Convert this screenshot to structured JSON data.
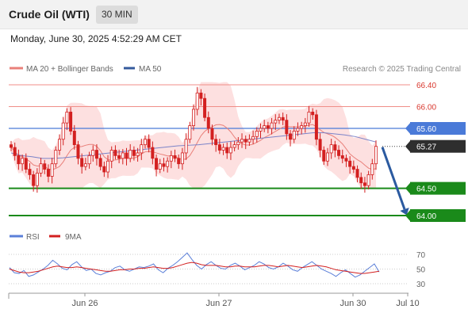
{
  "header": {
    "instrument": "Crude Oil (WTI)",
    "timeframe": "30 MIN"
  },
  "datetime": "Monday, June 30, 2025 4:52:29 AM CET",
  "legend": {
    "ma20_label": "MA 20 + Bollinger Bands",
    "ma50_label": "MA 50",
    "copyright": "Research © 2025 Trading Central"
  },
  "rsi_legend": {
    "rsi_label": "RSI",
    "ma_label": "9MA"
  },
  "colors": {
    "ma20": "#e9807a",
    "ma50": "#355a9c",
    "band": "#fde0e0",
    "resistance": "#f08e88",
    "pivot": "#4a7ad8",
    "support": "#1a8a1a",
    "last_price": "#2e2e2e",
    "candle": "#d32020",
    "arrow": "#2b5aa0",
    "rsi": "#5b7fd8",
    "rsi_ma": "#d32020"
  },
  "chart_data": [
    {
      "type": "candlestick",
      "x_axis": {
        "labels": [
          "Jun 26",
          "Jun 27",
          "Jun 30",
          "Jul 10"
        ]
      },
      "y_range": [
        63.8,
        66.5
      ],
      "levels": [
        {
          "label": "66.40",
          "value": 66.4,
          "kind": "resistance"
        },
        {
          "label": "66.00",
          "value": 66.0,
          "kind": "resistance"
        },
        {
          "label": "65.60",
          "value": 65.6,
          "kind": "pivot"
        },
        {
          "label": "64.50",
          "value": 64.5,
          "kind": "support"
        },
        {
          "label": "64.00",
          "value": 64.0,
          "kind": "support"
        }
      ],
      "last_price": {
        "label": "65.27",
        "value": 65.27
      },
      "close": [
        65.25,
        65.1,
        64.95,
        65.05,
        64.85,
        64.75,
        64.55,
        64.78,
        64.95,
        64.85,
        64.72,
        64.95,
        65.2,
        65.4,
        65.7,
        65.9,
        65.55,
        65.3,
        65.05,
        64.9,
        64.95,
        65.1,
        65.2,
        65.05,
        64.9,
        64.8,
        65.0,
        65.2,
        65.1,
        65.05,
        65.15,
        65.05,
        65.2,
        65.1,
        65.15,
        65.3,
        65.4,
        65.25,
        65.05,
        64.85,
        64.95,
        64.9,
        65.0,
        65.1,
        65.05,
        64.95,
        65.15,
        65.4,
        65.65,
        65.95,
        66.25,
        66.15,
        65.8,
        65.6,
        65.4,
        65.3,
        65.2,
        65.25,
        65.15,
        65.25,
        65.3,
        65.35,
        65.4,
        65.35,
        65.4,
        65.45,
        65.55,
        65.6,
        65.65,
        65.6,
        65.7,
        65.75,
        65.8,
        65.75,
        65.5,
        65.4,
        65.55,
        65.6,
        65.65,
        65.7,
        65.9,
        65.85,
        65.4,
        65.2,
        65.0,
        65.15,
        65.3,
        65.2,
        65.1,
        65.05,
        65.0,
        64.9,
        64.85,
        64.7,
        64.6,
        64.55,
        64.75,
        64.95,
        65.27
      ],
      "ma50": [
        65.15,
        65.1,
        65.08,
        65.05,
        65.05,
        65.06,
        65.08,
        65.1,
        65.12,
        65.14,
        65.16,
        65.18,
        65.2,
        65.22,
        65.24,
        65.26,
        65.28,
        65.29,
        65.3,
        65.32,
        65.34,
        65.36,
        65.38,
        65.4,
        65.42,
        65.44,
        65.46,
        65.48,
        65.5,
        65.52,
        65.52,
        65.5,
        65.48,
        65.45,
        65.4,
        65.35
      ],
      "bollinger": {
        "upper_max": 66.45,
        "lower_min": 64.5
      }
    },
    {
      "type": "line",
      "title": "RSI",
      "y_ticks": [
        "70",
        "50",
        "30"
      ],
      "series": [
        {
          "name": "RSI",
          "values": [
            52,
            45,
            44,
            48,
            40,
            42,
            46,
            50,
            55,
            62,
            57,
            51,
            49,
            56,
            60,
            53,
            48,
            50,
            44,
            42,
            45,
            47,
            52,
            54,
            49,
            47,
            50,
            53,
            52,
            54,
            57,
            49,
            45,
            51,
            55,
            60,
            66,
            72,
            63,
            55,
            50,
            56,
            60,
            55,
            51,
            50,
            55,
            58,
            54,
            49,
            52,
            55,
            60,
            57,
            52,
            50,
            53,
            58,
            54,
            49,
            47,
            52,
            56,
            60,
            55,
            50,
            47,
            44,
            40,
            45,
            49,
            44,
            39,
            42,
            47,
            52,
            57,
            46
          ]
        },
        {
          "name": "9MA",
          "values": [
            50,
            48,
            46,
            45,
            45,
            46,
            47,
            49,
            51,
            53,
            54,
            53,
            52,
            52,
            53,
            52,
            51,
            50,
            49,
            48,
            47,
            47,
            48,
            49,
            49,
            50,
            50,
            51,
            51,
            52,
            53,
            52,
            51,
            51,
            52,
            54,
            56,
            58,
            59,
            58,
            56,
            55,
            55,
            55,
            54,
            53,
            53,
            54,
            54,
            53,
            53,
            53,
            54,
            55,
            55,
            54,
            53,
            54,
            55,
            54,
            53,
            52,
            53,
            54,
            55,
            54,
            53,
            51,
            49,
            48,
            47,
            46,
            45,
            44,
            44,
            45,
            46,
            47
          ]
        }
      ]
    }
  ]
}
